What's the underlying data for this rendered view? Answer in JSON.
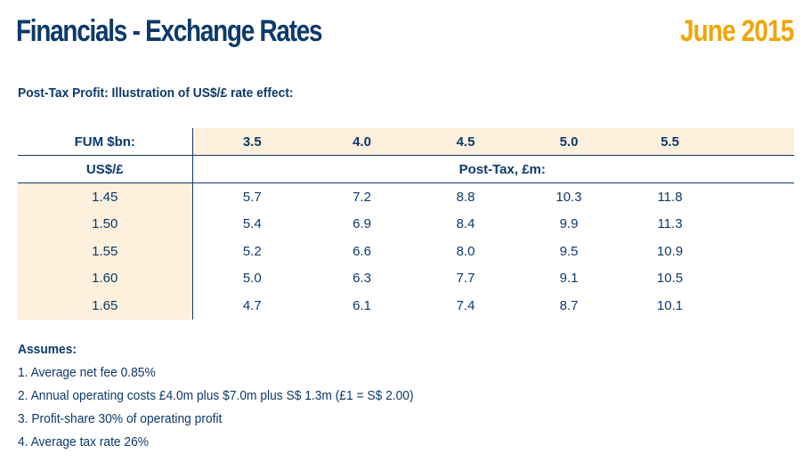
{
  "header": {
    "title": "Financials - Exchange Rates",
    "date": "June 2015"
  },
  "subtitle": "Post-Tax Profit: Illustration of US$/£ rate effect:",
  "table": {
    "fum_label": "FUM $bn:",
    "fum_values": [
      "3.5",
      "4.0",
      "4.5",
      "5.0",
      "5.5"
    ],
    "rate_label": "US$/£",
    "post_tax_label": "Post-Tax, £m:",
    "rows": [
      {
        "rate": "1.45",
        "values": [
          "5.7",
          "7.2",
          "8.8",
          "10.3",
          "11.8"
        ]
      },
      {
        "rate": "1.50",
        "values": [
          "5.4",
          "6.9",
          "8.4",
          "9.9",
          "11.3"
        ]
      },
      {
        "rate": "1.55",
        "values": [
          "5.2",
          "6.6",
          "8.0",
          "9.5",
          "10.9"
        ]
      },
      {
        "rate": "1.60",
        "values": [
          "5.0",
          "6.3",
          "7.7",
          "9.1",
          "10.5"
        ]
      },
      {
        "rate": "1.65",
        "values": [
          "4.7",
          "6.1",
          "7.4",
          "8.7",
          "10.1"
        ]
      }
    ]
  },
  "assumes": {
    "title": "Assumes:",
    "items": [
      "1. Average net fee 0.85%",
      "2. Annual operating costs £4.0m plus $7.0m plus S$ 1.3m (£1 = S$ 2.00)",
      "3. Profit-share 30% of operating profit",
      "4. Average tax rate 26%"
    ]
  },
  "colors": {
    "navy": "#0d3a6b",
    "gold": "#f0a500",
    "highlight": "#fdf0dc"
  }
}
